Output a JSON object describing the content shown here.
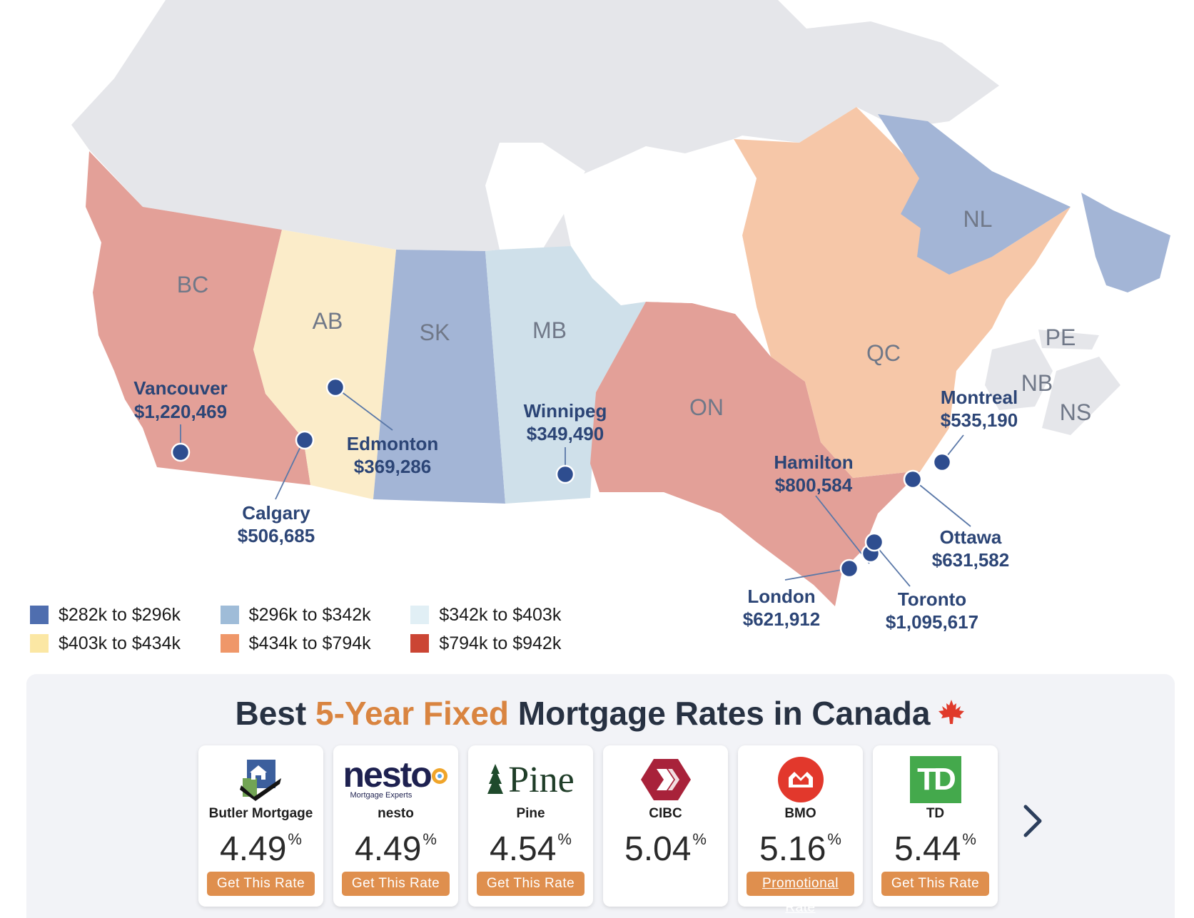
{
  "map": {
    "colors": {
      "very_low": "#4f6eaf",
      "low_mid": "#a3b5d6",
      "light_blue": "#cfe0ea",
      "cream": "#fbecc9",
      "peach": "#f6c7a8",
      "coral": "#e3a098",
      "territories": "#e5e6ea"
    },
    "regions": [
      {
        "code": "BC",
        "color_key": "coral"
      },
      {
        "code": "AB",
        "color_key": "cream"
      },
      {
        "code": "SK",
        "color_key": "low_mid"
      },
      {
        "code": "MB",
        "color_key": "light_blue"
      },
      {
        "code": "ON",
        "color_key": "coral"
      },
      {
        "code": "QC",
        "color_key": "peach"
      },
      {
        "code": "NL",
        "color_key": "low_mid"
      },
      {
        "code": "PE",
        "color_key": "territories"
      },
      {
        "code": "NB",
        "color_key": "territories"
      },
      {
        "code": "NS",
        "color_key": "territories"
      }
    ],
    "cities": [
      {
        "name": "Vancouver",
        "value": "$1,220,469"
      },
      {
        "name": "Calgary",
        "value": "$506,685"
      },
      {
        "name": "Edmonton",
        "value": "$369,286"
      },
      {
        "name": "Winnipeg",
        "value": "$349,490"
      },
      {
        "name": "Hamilton",
        "value": "$800,584"
      },
      {
        "name": "Montreal",
        "value": "$535,190"
      },
      {
        "name": "Ottawa",
        "value": "$631,582"
      },
      {
        "name": "Toronto",
        "value": "$1,095,617"
      },
      {
        "name": "London",
        "value": "$621,912"
      }
    ]
  },
  "legend": [
    {
      "label": "$282k to $296k",
      "color": "#4f6eaf"
    },
    {
      "label": "$296k to $342k",
      "color": "#9fbcd8"
    },
    {
      "label": "$342k to $403k",
      "color": "#e1eff5"
    },
    {
      "label": "$403k to $434k",
      "color": "#fbe7a4"
    },
    {
      "label": "$434k to $794k",
      "color": "#ef9769"
    },
    {
      "label": "$794k to $942k",
      "color": "#cb4534"
    }
  ],
  "rates": {
    "title_start": "Best ",
    "title_accent": "5-Year Fixed",
    "title_end": " Mortgage Rates in Canada",
    "flag_icon": "maple-leaf-icon",
    "lenders": [
      {
        "name": "Butler Mortgage",
        "rate": "4.49",
        "unit": "%",
        "button": "Get This Rate",
        "logo": "butler-house-icon"
      },
      {
        "name": "nesto",
        "rate": "4.49",
        "unit": "%",
        "button": "Get This Rate",
        "logo_text": "nesto",
        "logo_sub": "Mortgage Experts"
      },
      {
        "name": "Pine",
        "rate": "4.54",
        "unit": "%",
        "button": "Get This Rate",
        "logo_text": "Pine"
      },
      {
        "name": "CIBC",
        "rate": "5.04",
        "unit": "%",
        "logo": "cibc-chevron-icon"
      },
      {
        "name": "BMO",
        "rate": "5.16",
        "unit": "%",
        "button": "Promotional Rate",
        "logo": "bmo-roundel-icon"
      },
      {
        "name": "TD",
        "rate": "5.44",
        "unit": "%",
        "button": "Get This Rate",
        "logo_text": "TD"
      }
    ],
    "next_icon": "chevron-right-icon"
  }
}
